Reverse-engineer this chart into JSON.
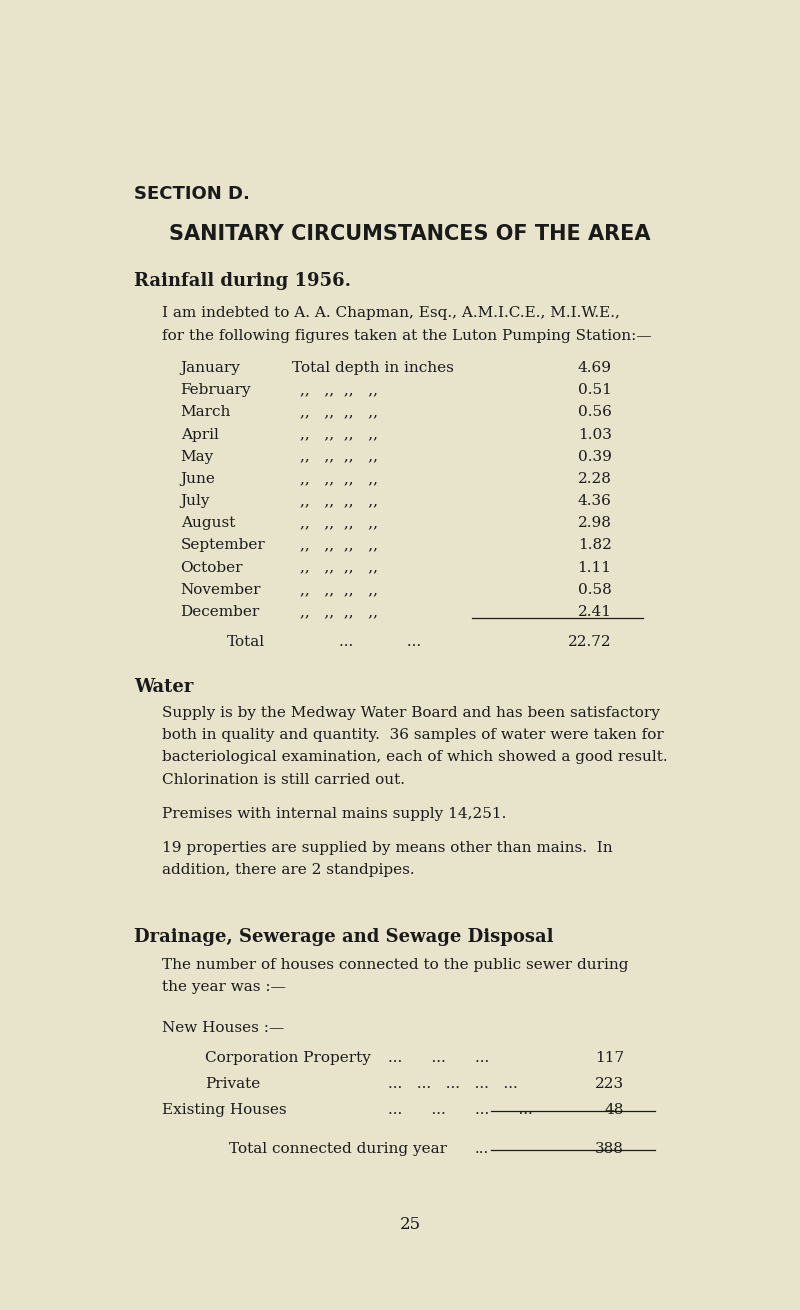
{
  "bg_color": "#e8e4cc",
  "text_color": "#1a1a1a",
  "section_label": "SECTION D.",
  "main_title": "SANITARY CIRCUMSTANCES OF THE AREA",
  "rainfall_heading": "Rainfall during 1956.",
  "intro_line1": "I am indebted to A. A. Chapman, Esq., A.M.I.C.E., M.I.W.E.,",
  "intro_line2": "for the following figures taken at the Luton Pumping Station:—",
  "months": [
    "January",
    "February",
    "March",
    "April",
    "May",
    "June",
    "July",
    "August",
    "September",
    "October",
    "November",
    "December"
  ],
  "rainfall_values": [
    "4.69",
    "0.51",
    "0.56",
    "1.03",
    "0.39",
    "2.28",
    "4.36",
    "2.98",
    "1.82",
    "1.11",
    "0.58",
    "2.41"
  ],
  "total_value": "22.72",
  "water_heading": "Water",
  "water_para1_lines": [
    "Supply is by the Medway Water Board and has been satisfactory",
    "both in quality and quantity.  36 samples of water were taken for",
    "bacteriological examination, each of which showed a good result.",
    "Chlorination is still carried out."
  ],
  "water_para2": "Premises with internal mains supply 14,251.",
  "water_para3_lines": [
    "19 properties are supplied by means other than mains.  In",
    "addition, there are 2 standpipes."
  ],
  "drainage_heading": "Drainage, Sewerage and Sewage Disposal",
  "drainage_para_lines": [
    "The number of houses connected to the public sewer during",
    "the year was :—"
  ],
  "new_houses_label": "New Houses :—",
  "corp_label": "Corporation Property",
  "corp_value": "117",
  "private_label": "Private",
  "private_value": "223",
  "existing_label": "Existing Houses",
  "existing_value": "48",
  "total_connected_label": "Total connected during year",
  "total_connected_value": "388",
  "page_number": "25"
}
